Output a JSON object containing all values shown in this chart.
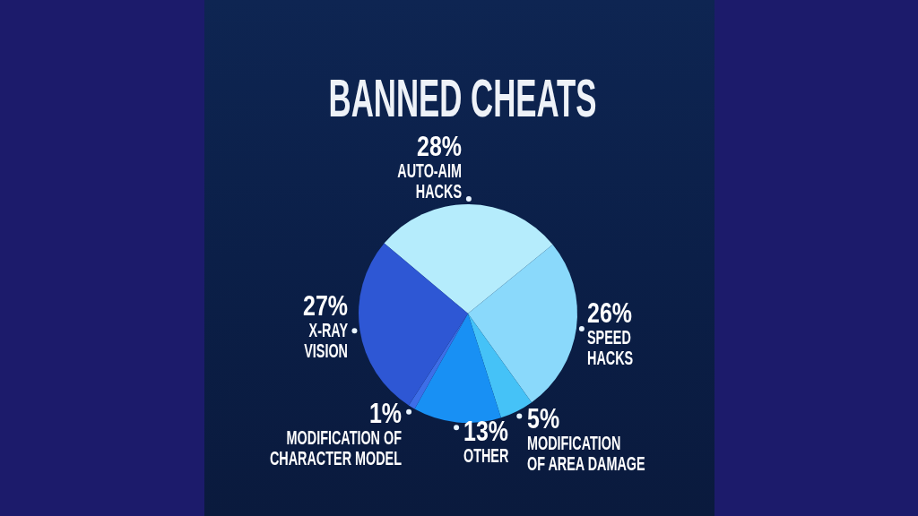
{
  "chart_data": {
    "type": "pie",
    "title": "BANNED CHEATS",
    "categories": [
      "AUTO-AIM HACKS",
      "SPEED HACKS",
      "MODIFICATION OF AREA DAMAGE",
      "OTHER",
      "MODIFICATION OF CHARACTER MODEL",
      "X-RAY VISION"
    ],
    "values": [
      28,
      26,
      5,
      13,
      1,
      27
    ],
    "colors": [
      "#b5ecfc",
      "#8ad9fb",
      "#45c2f7",
      "#1890f4",
      "#3d6ee8",
      "#2e57d4"
    ],
    "value_labels": [
      "28%",
      "26%",
      "5%",
      "13%",
      "1%",
      "27%"
    ]
  }
}
